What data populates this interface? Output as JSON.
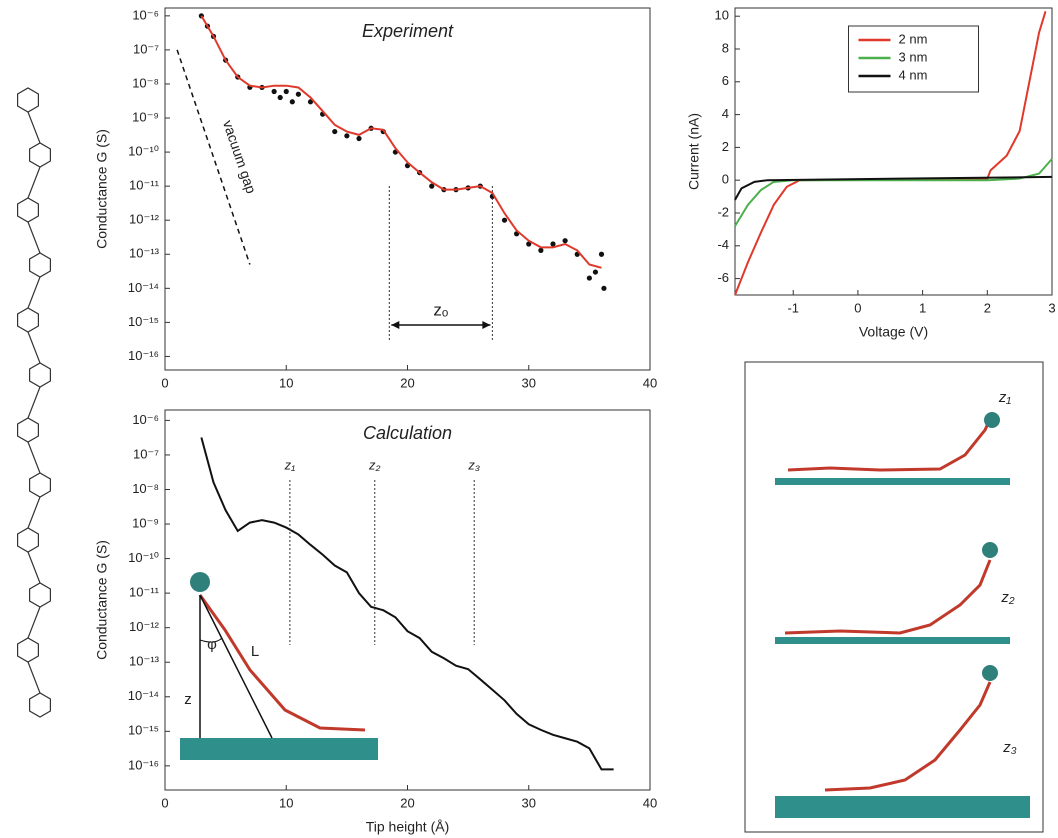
{
  "chart_data": [
    {
      "type": "scatter",
      "title": "Experiment",
      "ylabel": "Conductance G (S)",
      "log_y": true,
      "xlim": [
        0,
        40
      ],
      "xticks": [
        0,
        10,
        20,
        30,
        40
      ],
      "ylim": [
        4e-17,
        1.7e-06
      ],
      "yticks": [
        {
          "value": 1e-06,
          "label": "10⁻⁶"
        },
        {
          "value": 1e-07,
          "label": "10⁻⁷"
        },
        {
          "value": 1e-08,
          "label": "10⁻⁸"
        },
        {
          "value": 1e-09,
          "label": "10⁻⁹"
        },
        {
          "value": 1e-10,
          "label": "10⁻¹⁰"
        },
        {
          "value": 1e-11,
          "label": "10⁻¹¹"
        },
        {
          "value": 1e-12,
          "label": "10⁻¹²"
        },
        {
          "value": 1e-13,
          "label": "10⁻¹³"
        },
        {
          "value": 1e-14,
          "label": "10⁻¹⁴"
        },
        {
          "value": 1e-15,
          "label": "10⁻¹⁵"
        },
        {
          "value": 1e-16,
          "label": "10⁻¹⁶"
        }
      ],
      "series": [
        {
          "style": "markers",
          "color": "#111111",
          "x": [
            3,
            3.5,
            4,
            5,
            6,
            7,
            8,
            9,
            9.5,
            10,
            10.5,
            11,
            12,
            13,
            14,
            15,
            16,
            17,
            18,
            19,
            20,
            21,
            22,
            23,
            24,
            25,
            26,
            27,
            28,
            29,
            30,
            31,
            32,
            33,
            34,
            35,
            35.5,
            36,
            36.2
          ],
          "values": [
            1e-06,
            5e-07,
            2.5e-07,
            5e-08,
            1.6e-08,
            8e-09,
            7.9e-09,
            6e-09,
            4e-09,
            6e-09,
            3e-09,
            5e-09,
            3e-09,
            1.3e-09,
            4e-10,
            3e-10,
            2.5e-10,
            5e-10,
            4e-10,
            1e-10,
            4e-11,
            2.5e-11,
            1e-11,
            7.9e-12,
            7.9e-12,
            8.9e-12,
            1e-11,
            5e-12,
            1e-12,
            4e-13,
            2e-13,
            1.3e-13,
            2e-13,
            2.5e-13,
            1e-13,
            2e-14,
            3e-14,
            1e-13,
            1e-14
          ]
        },
        {
          "style": "line",
          "color": "#e0392b",
          "x": [
            3,
            4,
            5,
            6,
            7,
            8,
            9,
            10,
            11,
            12,
            13,
            14,
            15,
            16,
            17,
            18,
            19,
            20,
            21,
            22,
            23,
            24,
            25,
            26,
            27,
            28,
            29,
            30,
            31,
            32,
            33,
            34,
            35,
            36
          ],
          "values": [
            1e-06,
            2.5e-07,
            5e-08,
            1.6e-08,
            8.9e-09,
            7.9e-09,
            8.9e-09,
            8.9e-09,
            7.9e-09,
            4e-09,
            1.6e-09,
            6.3e-10,
            4e-10,
            3.2e-10,
            5e-10,
            4.5e-10,
            1.3e-10,
            5e-11,
            2.5e-11,
            1.3e-11,
            7.9e-12,
            7.9e-12,
            8.9e-12,
            1e-11,
            6.3e-12,
            1.6e-12,
            5e-13,
            2.5e-13,
            1.6e-13,
            1.6e-13,
            2e-13,
            1.3e-13,
            5e-14,
            4e-14
          ]
        }
      ],
      "markers": [
        {
          "x": 18.5
        },
        {
          "x": 27
        }
      ],
      "span_label": "zₒ",
      "reference_line": {
        "label": "vacuum gap",
        "x": [
          1,
          7
        ],
        "values": [
          1e-07,
          5e-14
        ]
      }
    },
    {
      "type": "line",
      "title": "Calculation",
      "ylabel": "Conductance G (S)",
      "xlabel": "Tip height (Å)",
      "log_y": true,
      "xlim": [
        0,
        40
      ],
      "xticks": [
        0,
        10,
        20,
        30,
        40
      ],
      "ylim": [
        2e-17,
        2e-06
      ],
      "yticks": [
        {
          "value": 1e-06,
          "label": "10⁻⁶"
        },
        {
          "value": 1e-07,
          "label": "10⁻⁷"
        },
        {
          "value": 1e-08,
          "label": "10⁻⁸"
        },
        {
          "value": 1e-09,
          "label": "10⁻⁹"
        },
        {
          "value": 1e-10,
          "label": "10⁻¹⁰"
        },
        {
          "value": 1e-11,
          "label": "10⁻¹¹"
        },
        {
          "value": 1e-12,
          "label": "10⁻¹²"
        },
        {
          "value": 1e-13,
          "label": "10⁻¹³"
        },
        {
          "value": 1e-14,
          "label": "10⁻¹⁴"
        },
        {
          "value": 1e-15,
          "label": "10⁻¹⁵"
        },
        {
          "value": 1e-16,
          "label": "10⁻¹⁶"
        }
      ],
      "series": [
        {
          "style": "line",
          "color": "#111111",
          "x": [
            3,
            4,
            5,
            6,
            7,
            8,
            9,
            10,
            11,
            12,
            13,
            14,
            15,
            16,
            17,
            18,
            19,
            20,
            21,
            22,
            23,
            24,
            25,
            26,
            27,
            28,
            29,
            30,
            31,
            32,
            33,
            34,
            35,
            36,
            37
          ],
          "values": [
            3.2e-07,
            1.6e-08,
            2.5e-09,
            6.3e-10,
            1.1e-09,
            1.3e-09,
            1.1e-09,
            7.9e-10,
            5e-10,
            2.5e-10,
            1.3e-10,
            6.3e-11,
            4e-11,
            1e-11,
            4e-12,
            3.2e-12,
            2e-12,
            7.9e-13,
            5e-13,
            2e-13,
            1.3e-13,
            7.9e-14,
            6.3e-14,
            3.2e-14,
            1.6e-14,
            7.9e-15,
            3.2e-15,
            1.6e-15,
            1.1e-15,
            7.9e-16,
            6.3e-16,
            5e-16,
            3.2e-16,
            7.9e-17,
            7.9e-17
          ]
        }
      ],
      "markers": [
        {
          "x": 10.3,
          "label": "z₁"
        },
        {
          "x": 17.3,
          "label": "z₂"
        },
        {
          "x": 25.5,
          "label": "z₃"
        }
      ],
      "inset_labels": [
        "z",
        "φ",
        "L"
      ]
    },
    {
      "type": "line",
      "xlabel": "Voltage (V)",
      "ylabel": "Current (nA)",
      "xlim": [
        -1.9,
        3
      ],
      "xticks": [
        -1,
        0,
        1,
        2,
        3
      ],
      "ylim": [
        -7,
        10.5
      ],
      "yticks": [
        -6,
        -4,
        -2,
        0,
        2,
        4,
        6,
        8,
        10
      ],
      "legend": "upper center",
      "series": [
        {
          "name": "2 nm",
          "style": "line",
          "color": "#e0392b",
          "x": [
            -1.9,
            -1.7,
            -1.5,
            -1.3,
            -1.1,
            -0.9,
            2,
            2.05,
            2.3,
            2.5,
            2.6,
            2.7,
            2.8,
            2.9
          ],
          "values": [
            -7,
            -5,
            -3.2,
            -1.5,
            -0.4,
            0,
            0.1,
            0.6,
            1.5,
            3,
            5,
            7,
            9,
            10.3
          ]
        },
        {
          "name": "3 nm",
          "style": "line",
          "color": "#4cb04c",
          "x": [
            -1.9,
            -1.7,
            -1.5,
            -1.3,
            -1,
            2,
            2.5,
            2.8,
            3
          ],
          "values": [
            -2.8,
            -1.5,
            -0.6,
            -0.1,
            0,
            0,
            0.1,
            0.4,
            1.3
          ]
        },
        {
          "name": "4 nm",
          "style": "line",
          "color": "#111111",
          "x": [
            -1.9,
            -1.8,
            -1.6,
            -1.4,
            3
          ],
          "values": [
            -1.2,
            -0.5,
            -0.1,
            0,
            0.2
          ]
        }
      ]
    }
  ],
  "structure_panel": {
    "labels": [
      "z₁",
      "z₂",
      "z₃"
    ]
  }
}
